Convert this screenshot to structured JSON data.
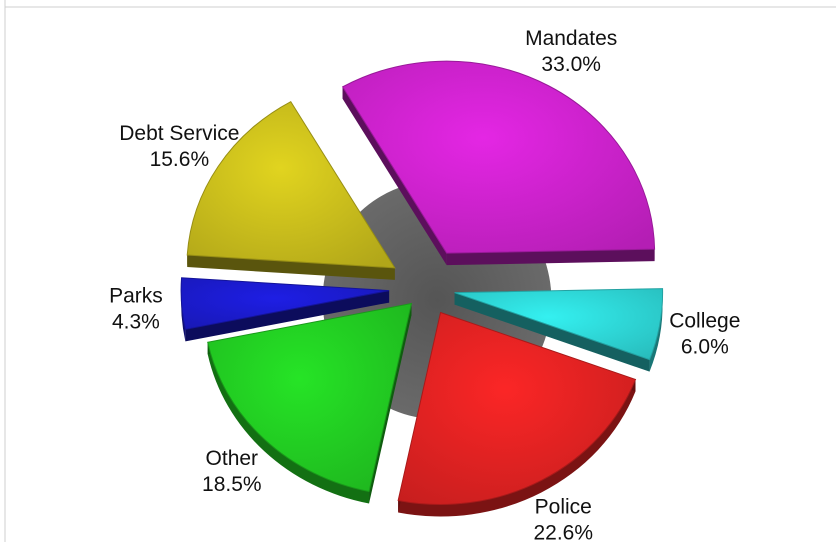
{
  "chart_data": {
    "type": "pie",
    "title": "",
    "style": "3d-exploded",
    "slices": [
      {
        "label": "Mandates",
        "value": 33.0,
        "value_label": "33.0%",
        "color": "#cc22cc"
      },
      {
        "label": "College",
        "value": 6.0,
        "value_label": "6.0%",
        "color": "#2ed6d6"
      },
      {
        "label": "Police",
        "value": 22.6,
        "value_label": "22.6%",
        "color": "#e02222"
      },
      {
        "label": "Other",
        "value": 18.5,
        "value_label": "18.5%",
        "color": "#22cc22"
      },
      {
        "label": "Parks",
        "value": 4.3,
        "value_label": "4.3%",
        "color": "#1b1bcc"
      },
      {
        "label": "Debt Service",
        "value": 15.6,
        "value_label": "15.6%",
        "color": "#c9bd1c"
      }
    ]
  }
}
